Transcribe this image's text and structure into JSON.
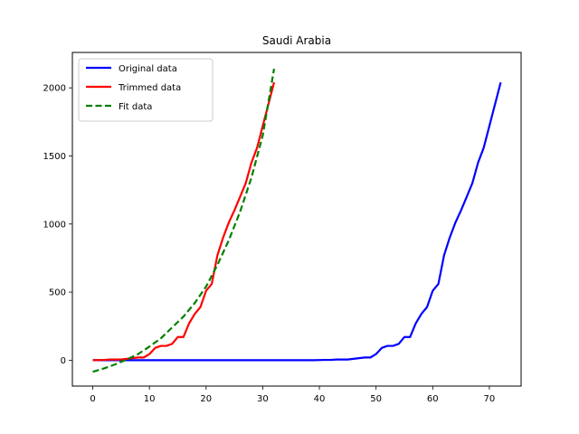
{
  "chart_data": {
    "type": "line",
    "title": "Saudi Arabia",
    "xlabel": "",
    "ylabel": "",
    "xlim": [
      -3.6,
      75.6
    ],
    "ylim": [
      -190,
      2260
    ],
    "xticks": [
      0,
      10,
      20,
      30,
      40,
      50,
      60,
      70
    ],
    "yticks": [
      0,
      500,
      1000,
      1500,
      2000
    ],
    "grid": false,
    "legend": {
      "position": "top-left"
    },
    "series": [
      {
        "name": "Original data",
        "color": "#0000ff",
        "style": "solid",
        "x": [
          0,
          10,
          20,
          30,
          39,
          41,
          42,
          43,
          44,
          45,
          46,
          47,
          48,
          49,
          50,
          51,
          52,
          53,
          54,
          55,
          56,
          57,
          58,
          59,
          60,
          61,
          62,
          63,
          64,
          65,
          66,
          67,
          68,
          69,
          70,
          71,
          72
        ],
        "y": [
          0,
          0,
          0,
          0,
          0,
          2,
          2,
          5,
          5,
          5,
          10,
          15,
          20,
          20,
          45,
          90,
          105,
          105,
          120,
          170,
          170,
          270,
          340,
          390,
          510,
          560,
          770,
          900,
          1010,
          1100,
          1200,
          1300,
          1450,
          1560,
          1720,
          1880,
          2040
        ]
      },
      {
        "name": "Trimmed data",
        "color": "#ff0000",
        "style": "solid",
        "x": [
          0,
          2,
          3,
          4,
          5,
          6,
          7,
          8,
          9,
          10,
          11,
          12,
          13,
          14,
          15,
          16,
          17,
          18,
          19,
          20,
          21,
          22,
          23,
          24,
          25,
          26,
          27,
          28,
          29,
          30,
          31,
          32
        ],
        "y": [
          0,
          2,
          5,
          5,
          5,
          10,
          15,
          20,
          20,
          45,
          90,
          105,
          105,
          120,
          170,
          170,
          270,
          340,
          390,
          510,
          560,
          770,
          900,
          1010,
          1100,
          1200,
          1300,
          1450,
          1560,
          1720,
          1880,
          2040
        ]
      },
      {
        "name": "Fit data",
        "color": "#008000",
        "style": "dashed",
        "x": [
          0,
          2,
          4,
          6,
          8,
          10,
          12,
          14,
          16,
          18,
          20,
          22,
          24,
          26,
          28,
          30,
          32
        ],
        "y": [
          -85,
          -60,
          -30,
          5,
          45,
          100,
          160,
          240,
          320,
          420,
          540,
          700,
          880,
          1090,
          1340,
          1650,
          2140
        ]
      }
    ]
  }
}
